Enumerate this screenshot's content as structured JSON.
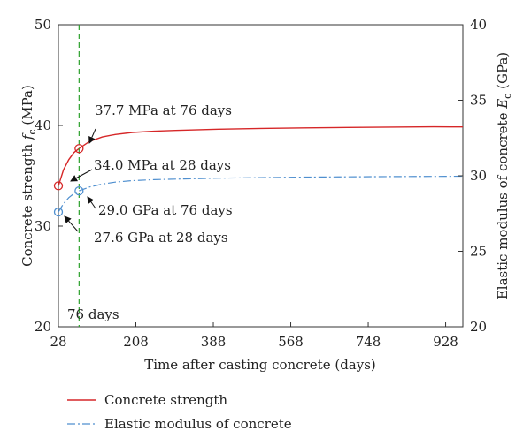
{
  "chart_data": {
    "type": "line",
    "xlabel": "Time after casting concrete (days)",
    "x_ticks": [
      28,
      208,
      388,
      568,
      748,
      928
    ],
    "xlim": [
      28,
      968
    ],
    "ylabel_left": "Concrete strength f_c (MPa)",
    "ylim_left": [
      20,
      50
    ],
    "y_ticks_left": [
      20,
      30,
      40,
      50
    ],
    "ylabel_right": "Elastic modulus of concrete E_c (GPa)",
    "ylim_right": [
      20,
      40
    ],
    "y_ticks_right": [
      20,
      25,
      30,
      35,
      40
    ],
    "grid": false,
    "legend_position": "bottom",
    "series": [
      {
        "name": "Concrete strength",
        "axis": "left",
        "color": "#d62728",
        "line_style": "solid",
        "x": [
          28,
          40,
          52,
          64,
          76,
          100,
          130,
          160,
          200,
          250,
          300,
          400,
          500,
          600,
          700,
          800,
          900,
          968
        ],
        "y": [
          34.0,
          35.6,
          36.6,
          37.3,
          37.7,
          38.4,
          38.85,
          39.1,
          39.3,
          39.42,
          39.5,
          39.62,
          39.7,
          39.75,
          39.8,
          39.83,
          39.86,
          39.85
        ]
      },
      {
        "name": "Elastic modulus of concrete",
        "axis": "right",
        "color": "#4f8fcf",
        "line_style": "dashdot",
        "x": [
          28,
          40,
          52,
          64,
          76,
          100,
          130,
          160,
          200,
          250,
          300,
          400,
          500,
          600,
          700,
          800,
          900,
          968
        ],
        "y": [
          27.6,
          28.15,
          28.55,
          28.82,
          29.0,
          29.25,
          29.45,
          29.58,
          29.68,
          29.74,
          29.78,
          29.84,
          29.88,
          29.91,
          29.93,
          29.95,
          29.96,
          29.97
        ]
      }
    ],
    "vertical_line": {
      "x": 76,
      "label": "76 days",
      "color": "#2ca02c",
      "line_style": "dashed"
    },
    "annotations": [
      {
        "text": "37.7 MPa at 76 days",
        "series": 0,
        "x": 76,
        "y": 37.7
      },
      {
        "text": "34.0 MPa at 28 days",
        "series": 0,
        "x": 28,
        "y": 34.0
      },
      {
        "text": "29.0 GPa at 76 days",
        "series": 1,
        "x": 76,
        "y": 29.0
      },
      {
        "text": "27.6 GPa at 28 days",
        "series": 1,
        "x": 28,
        "y": 27.6
      }
    ]
  }
}
